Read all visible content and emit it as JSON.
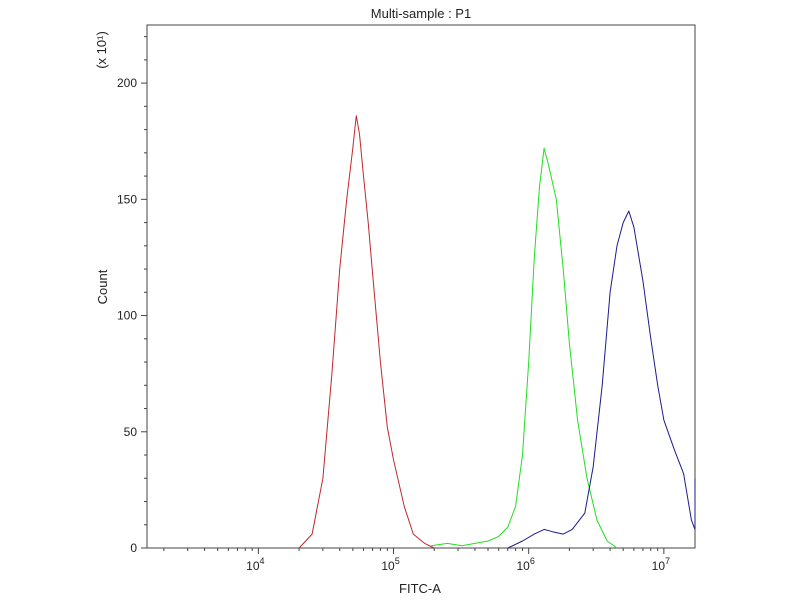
{
  "chart_data": {
    "type": "line",
    "title": "Multi-sample : P1",
    "xlabel": "FITC-A",
    "ylabel": "Count",
    "y_multiplier": "(x 10¹)",
    "x_scale": "log",
    "xlim": [
      1500,
      17000000
    ],
    "ylim": [
      0,
      225
    ],
    "x_ticks": [
      {
        "value": 10000,
        "base": "10",
        "exp": "4"
      },
      {
        "value": 100000,
        "base": "10",
        "exp": "5"
      },
      {
        "value": 1000000,
        "base": "10",
        "exp": "6"
      },
      {
        "value": 10000000,
        "base": "10",
        "exp": "7"
      }
    ],
    "y_ticks": [
      0,
      50,
      100,
      150,
      200
    ],
    "grid": false,
    "legend": "none",
    "series": [
      {
        "color": "#c0282d",
        "x": [
          20000,
          25000,
          30000,
          35000,
          40000,
          45000,
          50000,
          53000,
          56000,
          60000,
          65000,
          70000,
          80000,
          90000,
          100000,
          120000,
          140000,
          170000,
          200000
        ],
        "y": [
          0,
          6,
          30,
          75,
          120,
          150,
          172,
          186,
          178,
          160,
          140,
          118,
          80,
          52,
          38,
          18,
          6,
          2,
          0
        ]
      },
      {
        "color": "#22dd22",
        "x": [
          190000,
          250000,
          320000,
          400000,
          500000,
          600000,
          700000,
          800000,
          900000,
          1000000,
          1100000,
          1200000,
          1300000,
          1400000,
          1600000,
          1800000,
          2000000,
          2300000,
          2700000,
          3200000,
          3800000,
          4500000
        ],
        "y": [
          1,
          2,
          1,
          2,
          3,
          5,
          9,
          18,
          40,
          80,
          125,
          155,
          172,
          165,
          150,
          120,
          88,
          55,
          30,
          12,
          3,
          0
        ]
      },
      {
        "color": "#1b1b8f",
        "x": [
          700000,
          900000,
          1100000,
          1300000,
          1500000,
          1800000,
          2100000,
          2600000,
          3000000,
          3500000,
          4000000,
          4500000,
          5000000,
          5500000,
          6000000,
          7000000,
          8000000,
          9000000,
          10000000,
          12000000,
          14000000,
          16000000,
          17000000,
          17000000
        ],
        "y": [
          0,
          3,
          6,
          8,
          7,
          6,
          8,
          15,
          35,
          70,
          110,
          130,
          140,
          145,
          138,
          115,
          90,
          70,
          55,
          42,
          32,
          12,
          8,
          30
        ]
      }
    ]
  }
}
